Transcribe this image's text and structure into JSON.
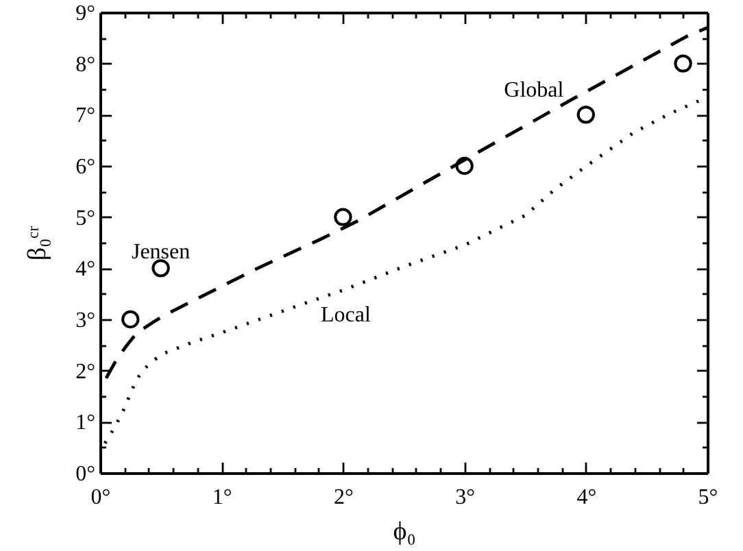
{
  "chart_data": {
    "type": "line",
    "xlabel": "ϕ₀",
    "ylabel": "β₀ᶜʳ",
    "xlim": [
      0,
      5
    ],
    "ylim": [
      0,
      9
    ],
    "xticks": [
      {
        "value": 0,
        "label": "0°"
      },
      {
        "value": 0.2,
        "label": null
      },
      {
        "value": 0.4,
        "label": null
      },
      {
        "value": 0.6,
        "label": null
      },
      {
        "value": 0.8,
        "label": null
      },
      {
        "value": 1,
        "label": "1°"
      },
      {
        "value": 1.2,
        "label": null
      },
      {
        "value": 1.4,
        "label": null
      },
      {
        "value": 1.6,
        "label": null
      },
      {
        "value": 1.8,
        "label": null
      },
      {
        "value": 2,
        "label": "2°"
      },
      {
        "value": 2.2,
        "label": null
      },
      {
        "value": 2.4,
        "label": null
      },
      {
        "value": 2.6,
        "label": null
      },
      {
        "value": 2.8,
        "label": null
      },
      {
        "value": 3,
        "label": "3°"
      },
      {
        "value": 3.2,
        "label": null
      },
      {
        "value": 3.4,
        "label": null
      },
      {
        "value": 3.6,
        "label": null
      },
      {
        "value": 3.8,
        "label": null
      },
      {
        "value": 4,
        "label": "4°"
      },
      {
        "value": 4.2,
        "label": null
      },
      {
        "value": 4.4,
        "label": null
      },
      {
        "value": 4.6,
        "label": null
      },
      {
        "value": 4.8,
        "label": null
      },
      {
        "value": 5,
        "label": "5°"
      }
    ],
    "yticks": [
      {
        "value": 0,
        "label": "0°"
      },
      {
        "value": 0.5,
        "label": null
      },
      {
        "value": 1,
        "label": "1°"
      },
      {
        "value": 1.5,
        "label": null
      },
      {
        "value": 2,
        "label": "2°"
      },
      {
        "value": 2.5,
        "label": null
      },
      {
        "value": 3,
        "label": "3°"
      },
      {
        "value": 3.5,
        "label": null
      },
      {
        "value": 4,
        "label": "4°"
      },
      {
        "value": 4.5,
        "label": null
      },
      {
        "value": 5,
        "label": "5°"
      },
      {
        "value": 5.5,
        "label": null
      },
      {
        "value": 6,
        "label": "6°"
      },
      {
        "value": 6.5,
        "label": null
      },
      {
        "value": 7,
        "label": "7°"
      },
      {
        "value": 7.5,
        "label": null
      },
      {
        "value": 8,
        "label": "8°"
      },
      {
        "value": 8.5,
        "label": null
      },
      {
        "value": 9,
        "label": "9°"
      }
    ],
    "grid": false,
    "series": [
      {
        "name": "Global",
        "line_style": "dashed",
        "color": "#000000",
        "x": [
          0.05,
          0.13,
          0.21,
          0.3,
          0.44,
          0.53,
          0.72,
          0.98,
          1.28,
          1.81,
          2.11,
          2.4,
          3.1,
          3.91,
          4.83,
          5.0
        ],
        "values": [
          1.85,
          2.19,
          2.46,
          2.73,
          2.95,
          3.08,
          3.31,
          3.62,
          3.98,
          4.56,
          4.91,
          5.3,
          6.25,
          7.33,
          8.53,
          8.7
        ]
      },
      {
        "name": "Local",
        "line_style": "dotted",
        "color": "#000000",
        "x": [
          0.04,
          0.11,
          0.16,
          0.21,
          0.25,
          0.3,
          0.35,
          0.44,
          0.53,
          0.76,
          1.0,
          1.36,
          1.73,
          2.0,
          2.5,
          3.0,
          3.3,
          3.5,
          3.75,
          4.0,
          4.4,
          4.7,
          4.93
        ],
        "values": [
          0.58,
          0.85,
          1.07,
          1.31,
          1.56,
          1.81,
          2.0,
          2.2,
          2.34,
          2.55,
          2.74,
          3.04,
          3.35,
          3.57,
          4.03,
          4.45,
          4.8,
          5.03,
          5.55,
          5.99,
          6.66,
          7.03,
          7.27
        ]
      },
      {
        "name": "Jensen",
        "type": "scatter",
        "marker": "circle",
        "color": "#000000",
        "x": [
          0.25,
          0.5,
          2,
          3,
          4,
          4.8
        ],
        "values": [
          3,
          4,
          5,
          6,
          7,
          8
        ]
      }
    ]
  }
}
